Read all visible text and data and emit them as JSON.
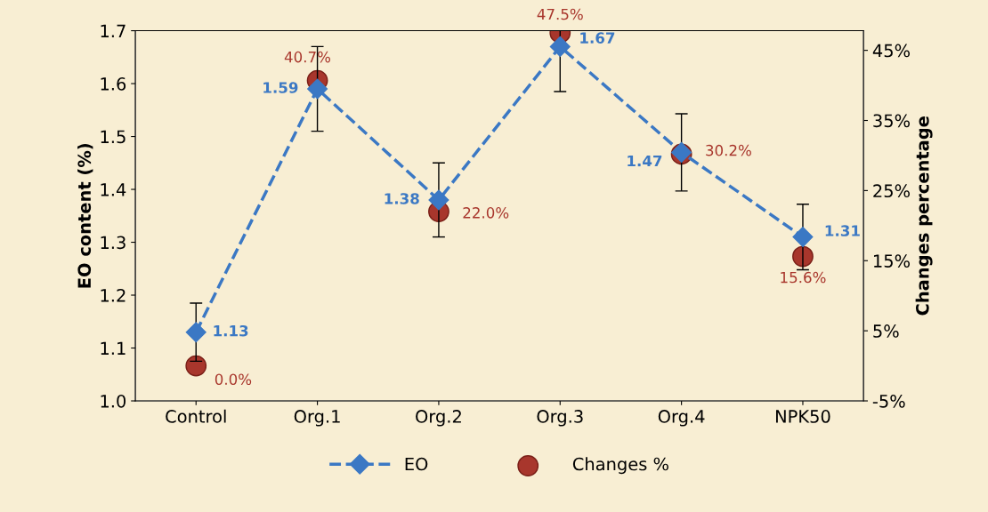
{
  "chart_data": {
    "type": "line",
    "categories": [
      "Control",
      "Org.1",
      "Org.2",
      "Org.3",
      "Org.4",
      "NPK50"
    ],
    "ylabel": "EO content (%)",
    "y2label": "Changes percentage",
    "ylim": [
      1.0,
      1.7
    ],
    "yticks": [
      {
        "value": 1.0,
        "label": "1.0"
      },
      1.1,
      1.2,
      1.3,
      1.4,
      1.5,
      1.6,
      1.7
    ],
    "y2lim": [
      -5,
      47.8
    ],
    "y2ticks": [
      {
        "value": -5,
        "label": "-5%"
      },
      {
        "value": 5,
        "label": "5%"
      },
      {
        "value": 15,
        "label": "15%"
      },
      {
        "value": 25,
        "label": "25%"
      },
      {
        "value": 35,
        "label": "35%"
      },
      {
        "value": 45,
        "label": "45%"
      }
    ],
    "grid": false,
    "legend": "bottom",
    "series": [
      {
        "name": "EO",
        "color": "#3b78c4",
        "marker": "diamond",
        "line_style": "dashed",
        "values": [
          1.13,
          1.59,
          1.38,
          1.67,
          1.47,
          1.31
        ],
        "errors": [
          0.055,
          0.08,
          0.07,
          0.085,
          0.073,
          0.062
        ],
        "value_labels": [
          "1.13",
          "1.59",
          "1.38",
          "1.67",
          "1.47",
          "1.31"
        ]
      },
      {
        "name": "Changes %",
        "type": "scatter",
        "axis": "y2",
        "color": "#a8362c",
        "marker": "circle",
        "values": [
          0.0,
          40.7,
          22.0,
          47.5,
          30.2,
          15.6
        ],
        "value_labels": [
          "0.0%",
          "40.7%",
          "22.0%",
          "47.5%",
          "30.2%",
          "15.6%"
        ]
      }
    ]
  }
}
